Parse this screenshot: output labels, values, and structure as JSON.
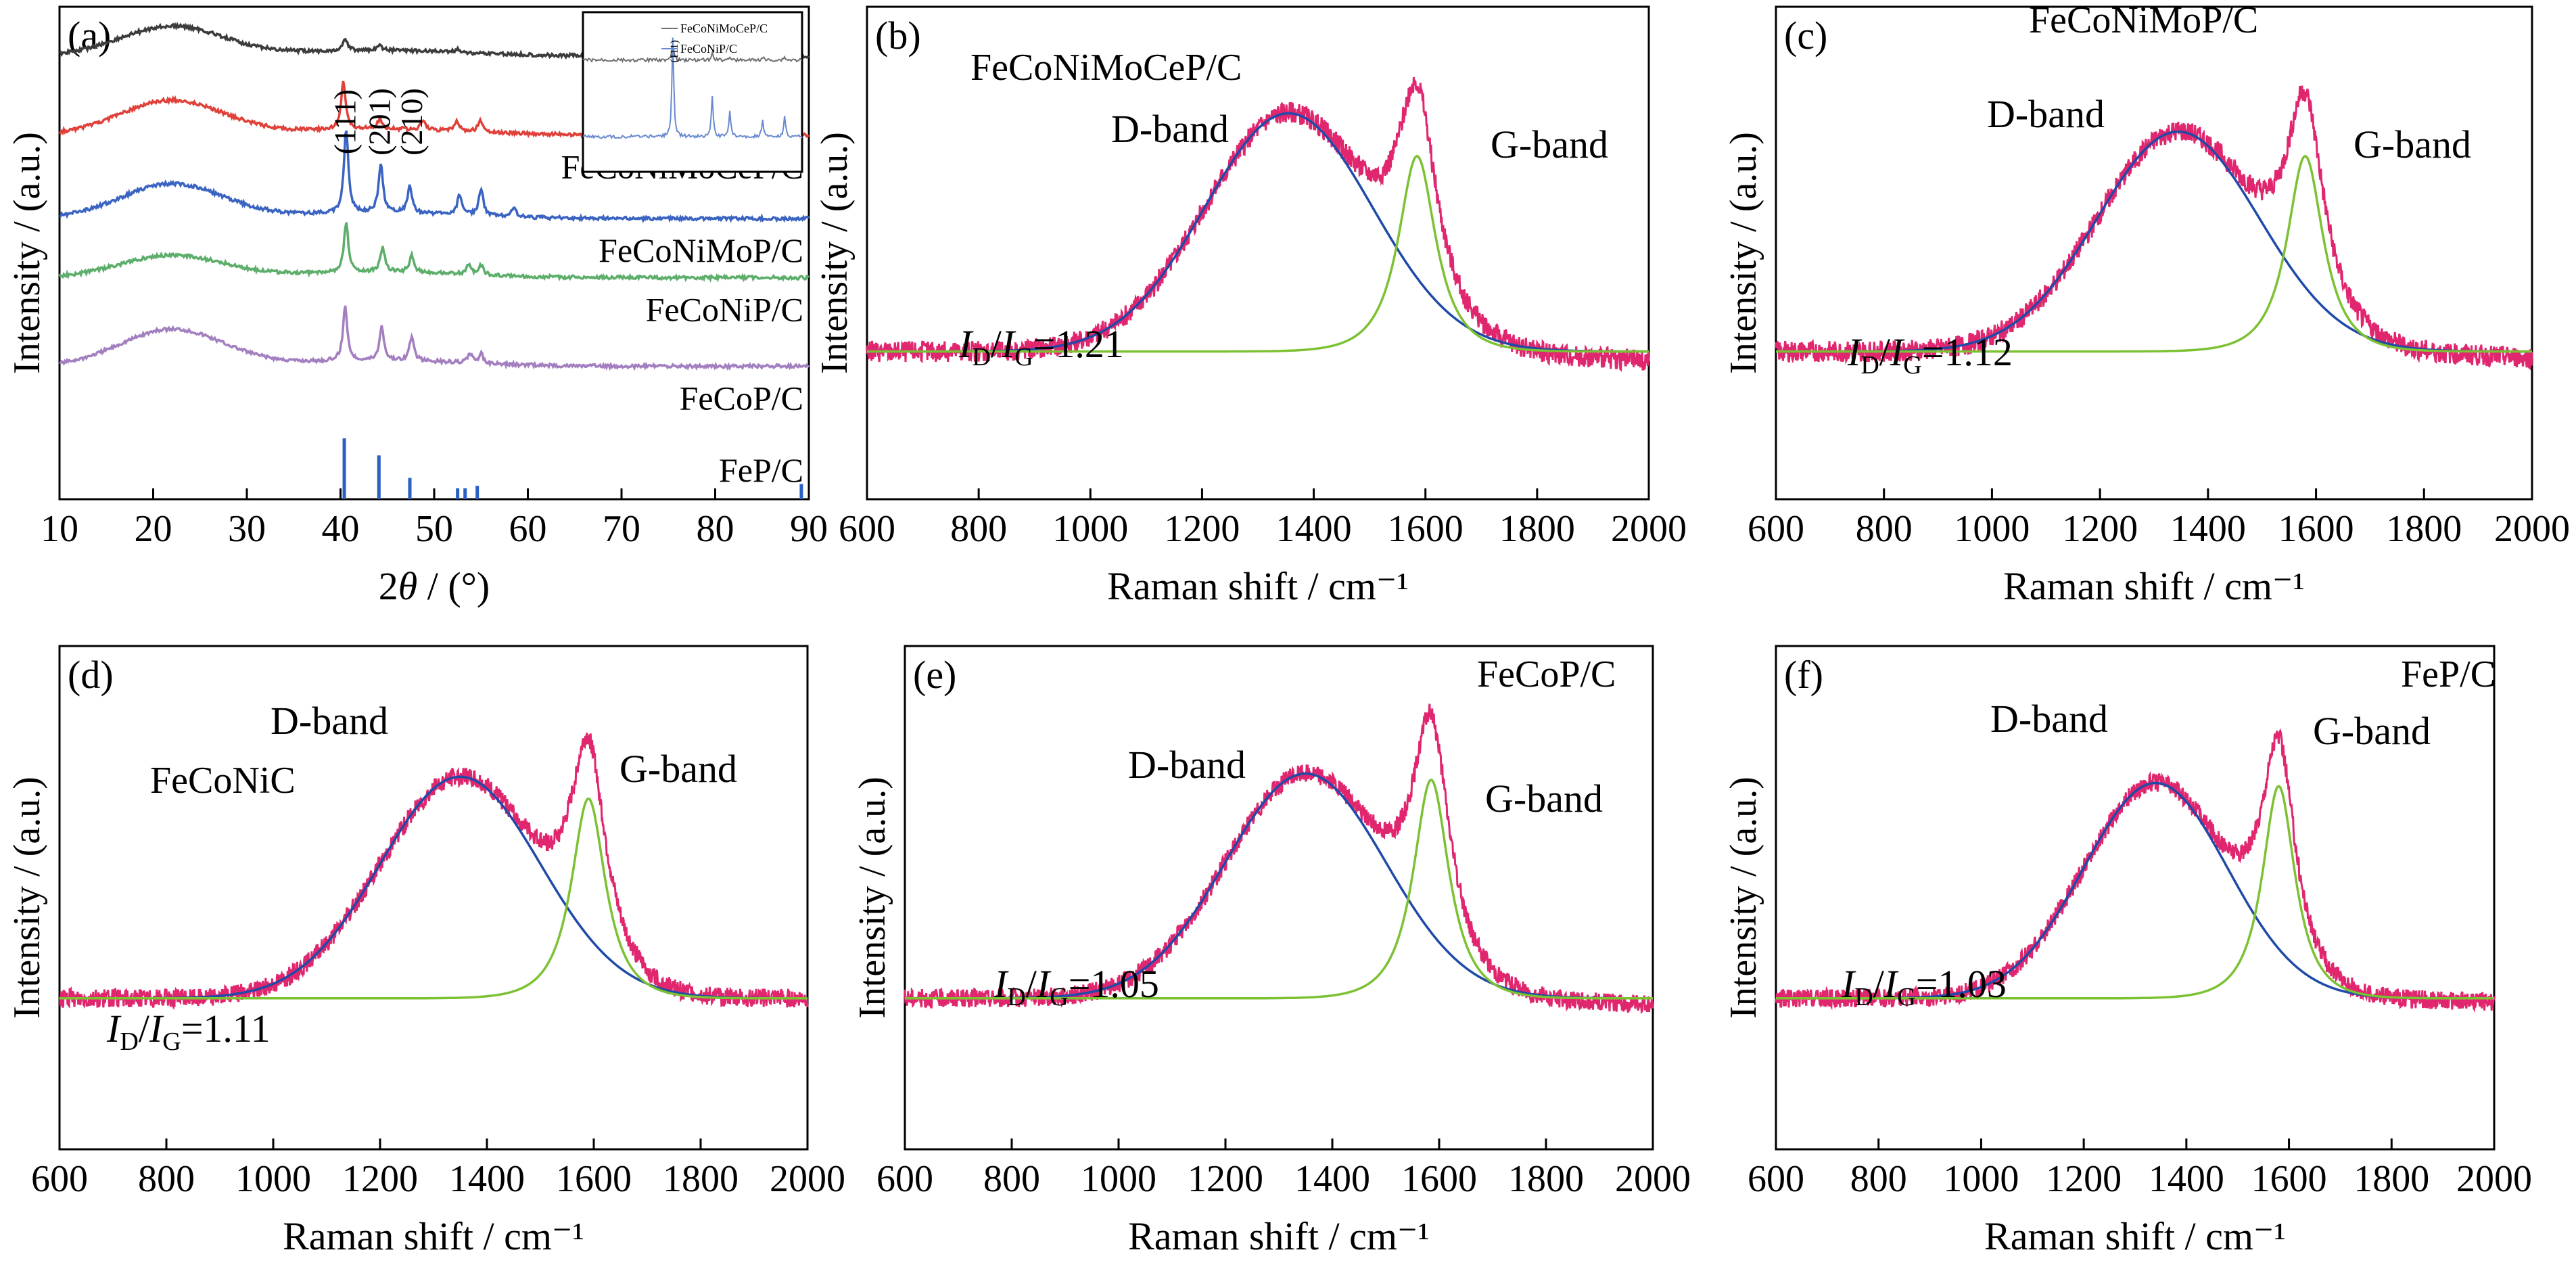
{
  "figure": {
    "xrd_xlabel_prefix": "2",
    "xrd_xlabel_theta": "θ",
    "xrd_xlabel_suffix": " / (°)",
    "raman_xlabel": "Raman shift / cm⁻¹"
  },
  "chart_data": [
    {
      "id": "a",
      "panel_label": "(a)",
      "type": "line",
      "kind": "xrd",
      "xlabel": "2θ / (°)",
      "ylabel": "Intensity / (a.u.)",
      "xlim": [
        10,
        90
      ],
      "xticks": [
        10,
        20,
        30,
        40,
        50,
        60,
        70,
        80,
        90
      ],
      "peak_labels": [
        {
          "x": 40.5,
          "text": "(111)"
        },
        {
          "x": 44.2,
          "text": "(201)"
        },
        {
          "x": 47.6,
          "text": "(210)"
        }
      ],
      "series": [
        {
          "name": "",
          "color": "#3c3c3c",
          "baseline": 0.1,
          "hump": 0.06,
          "peaks": [
            [
              40.5,
              0.025
            ],
            [
              44.2,
              0.008
            ],
            [
              52.5,
              0.006
            ]
          ]
        },
        {
          "name": "FeCoNiMoCeP/C",
          "color": "#e0413a",
          "baseline": 0.26,
          "hump": 0.07,
          "peaks": [
            [
              40.3,
              0.1
            ],
            [
              44.2,
              0.02
            ],
            [
              48.8,
              0.02
            ],
            [
              52.4,
              0.02
            ],
            [
              54.9,
              0.025
            ]
          ]
        },
        {
          "name": "FeCoNiMoP/C",
          "color": "#3a63c2",
          "baseline": 0.43,
          "hump": 0.07,
          "peaks": [
            [
              40.6,
              0.17
            ],
            [
              44.3,
              0.1
            ],
            [
              47.4,
              0.055
            ],
            [
              52.7,
              0.04
            ],
            [
              55.0,
              0.055
            ],
            [
              58.5,
              0.02
            ]
          ]
        },
        {
          "name": "FeCoNiP/C",
          "color": "#5cae6a",
          "baseline": 0.55,
          "hump": 0.045,
          "peaks": [
            [
              40.6,
              0.1
            ],
            [
              44.5,
              0.05
            ],
            [
              47.6,
              0.035
            ],
            [
              53.7,
              0.02
            ],
            [
              55.0,
              0.02
            ]
          ]
        },
        {
          "name": "FeCoP/C",
          "color": "#a37fc0",
          "baseline": 0.73,
          "hump": 0.075,
          "peaks": [
            [
              40.5,
              0.11
            ],
            [
              44.4,
              0.07
            ],
            [
              47.6,
              0.05
            ],
            [
              53.8,
              0.02
            ],
            [
              55.0,
              0.02
            ]
          ]
        }
      ],
      "reference": {
        "name": "FeP/C",
        "color": "#2a5fc4",
        "lines": [
          [
            40.4,
            1.0
          ],
          [
            44.1,
            0.72
          ],
          [
            47.4,
            0.35
          ],
          [
            52.5,
            0.18
          ],
          [
            53.3,
            0.18
          ],
          [
            54.6,
            0.22
          ],
          [
            89.2,
            0.25
          ]
        ]
      },
      "inset": {
        "labels": [
          "FeCoNiMoCeP/C",
          "FeCoNiP/C"
        ],
        "peak_label": "(111)"
      }
    },
    {
      "id": "b",
      "panel_label": "(b)",
      "type": "line",
      "kind": "raman",
      "xlabel": "Raman shift / cm⁻¹",
      "ylabel": "Intensity / (a.u.)",
      "xlim": [
        600,
        2000
      ],
      "xticks": [
        600,
        800,
        1000,
        1200,
        1400,
        1600,
        1800,
        2000
      ],
      "sample": "FeCoNiMoCeP/C",
      "d_label": "D-band",
      "g_label": "G-band",
      "ratio_sub1": "D",
      "ratio_sub2": "G",
      "ratio_value": "=1.21",
      "fit": {
        "d_center": 1355,
        "d_height": 0.78,
        "d_width": 150,
        "g_center": 1585,
        "g_height": 0.64,
        "g_width": 42,
        "baseline": 0.0,
        "tail": -0.03,
        "noise": 0.035
      }
    },
    {
      "id": "c",
      "panel_label": "(c)",
      "type": "line",
      "kind": "raman",
      "xlabel": "Raman shift / cm⁻¹",
      "ylabel": "Intensity / (a.u.)",
      "xlim": [
        600,
        2000
      ],
      "xticks": [
        600,
        800,
        1000,
        1200,
        1400,
        1600,
        1800,
        2000
      ],
      "sample": "FeCoNiMoP/C",
      "d_label": "D-band",
      "g_label": "G-band",
      "ratio_sub1": "D",
      "ratio_sub2": "G",
      "ratio_value": "=1.12",
      "fit": {
        "d_center": 1345,
        "d_height": 0.72,
        "d_width": 150,
        "g_center": 1580,
        "g_height": 0.64,
        "g_width": 42,
        "baseline": 0.0,
        "tail": -0.02,
        "noise": 0.035
      }
    },
    {
      "id": "d",
      "panel_label": "(d)",
      "type": "line",
      "kind": "raman",
      "xlabel": "Raman shift / cm⁻¹",
      "ylabel": "Intensity / (a.u.)",
      "xlim": [
        600,
        2000
      ],
      "xticks": [
        600,
        800,
        1000,
        1200,
        1400,
        1600,
        1800,
        2000
      ],
      "sample": "FeCoNiC",
      "d_label": "D-band",
      "g_label": "G-band",
      "ratio_sub1": "D",
      "ratio_sub2": "G",
      "ratio_value": "=1.11",
      "fit": {
        "d_center": 1350,
        "d_height": 0.71,
        "d_width": 150,
        "g_center": 1590,
        "g_height": 0.64,
        "g_width": 40,
        "baseline": 0.0,
        "tail": 0.0,
        "noise": 0.03
      }
    },
    {
      "id": "e",
      "panel_label": "(e)",
      "type": "line",
      "kind": "raman",
      "xlabel": "Raman shift / cm⁻¹",
      "ylabel": "Intensity / (a.u.)",
      "xlim": [
        600,
        2000
      ],
      "xticks": [
        600,
        800,
        1000,
        1200,
        1400,
        1600,
        1800,
        2000
      ],
      "sample": "FeCoP/C",
      "d_label": "D-band",
      "g_label": "G-band",
      "ratio_sub1": "D",
      "ratio_sub2": "G",
      "ratio_value": "=1.05",
      "fit": {
        "d_center": 1350,
        "d_height": 0.72,
        "d_width": 150,
        "g_center": 1585,
        "g_height": 0.7,
        "g_width": 42,
        "baseline": 0.0,
        "tail": -0.02,
        "noise": 0.03
      }
    },
    {
      "id": "f",
      "panel_label": "(f)",
      "type": "line",
      "kind": "raman",
      "xlabel": "Raman shift / cm⁻¹",
      "ylabel": "Intensity / (a.u.)",
      "xlim": [
        600,
        2000
      ],
      "xticks": [
        600,
        800,
        1000,
        1200,
        1400,
        1600,
        1800,
        2000
      ],
      "sample": "FeP/C",
      "d_label": "D-band",
      "g_label": "G-band",
      "ratio_sub1": "D",
      "ratio_sub2": "G",
      "ratio_value": "=1.03",
      "fit": {
        "d_center": 1340,
        "d_height": 0.69,
        "d_width": 140,
        "g_center": 1580,
        "g_height": 0.68,
        "g_width": 40,
        "baseline": 0.0,
        "tail": -0.01,
        "noise": 0.03
      }
    }
  ]
}
